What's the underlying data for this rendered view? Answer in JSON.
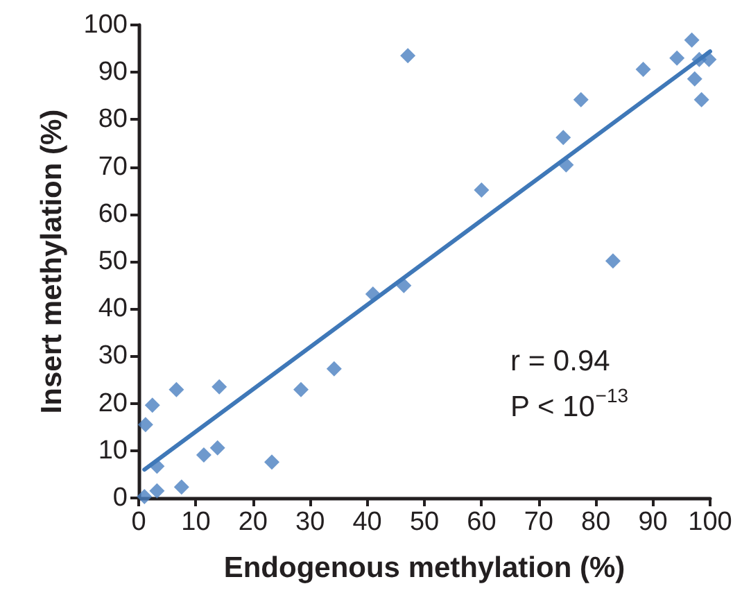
{
  "chart_data": {
    "type": "scatter",
    "xlabel": "Endogenous methylation (%)",
    "ylabel": "Insert methylation (%)",
    "xlim": [
      0,
      100
    ],
    "xticks": [
      0,
      10,
      20,
      30,
      40,
      50,
      60,
      70,
      80,
      90,
      100
    ],
    "ylim": [
      0,
      100
    ],
    "yticks": [
      0,
      10,
      20,
      30,
      40,
      50,
      60,
      70,
      80,
      90,
      100
    ],
    "grid": false,
    "marker": "diamond",
    "series": [
      {
        "color": "#4a7fc1",
        "x": [
          1.0,
          3.2,
          3.2,
          1.2,
          2.4,
          6.6,
          7.5,
          11.4,
          13.8,
          14.1,
          23.3,
          28.4,
          34.2,
          41.0,
          46.4,
          47.1,
          60.0,
          74.3,
          74.8,
          77.4,
          83.0,
          88.3,
          94.2,
          96.8,
          98.1,
          99.8,
          97.3,
          98.5
        ],
        "values": [
          0.3,
          1.5,
          6.7,
          15.5,
          19.6,
          22.9,
          2.3,
          9.1,
          10.6,
          23.5,
          7.6,
          22.9,
          27.3,
          43.1,
          44.9,
          93.5,
          65.1,
          76.2,
          70.4,
          84.2,
          50.1,
          90.6,
          93.0,
          96.8,
          92.7,
          92.7,
          88.6,
          84.2
        ]
      },
      {
        "type": "line",
        "color": "#3f78b8",
        "marker": "none",
        "x": [
          1,
          100
        ],
        "values": [
          6,
          94.4
        ]
      }
    ],
    "annotations": [
      "r = 0.94",
      "P < 10$^{−13}$"
    ]
  }
}
